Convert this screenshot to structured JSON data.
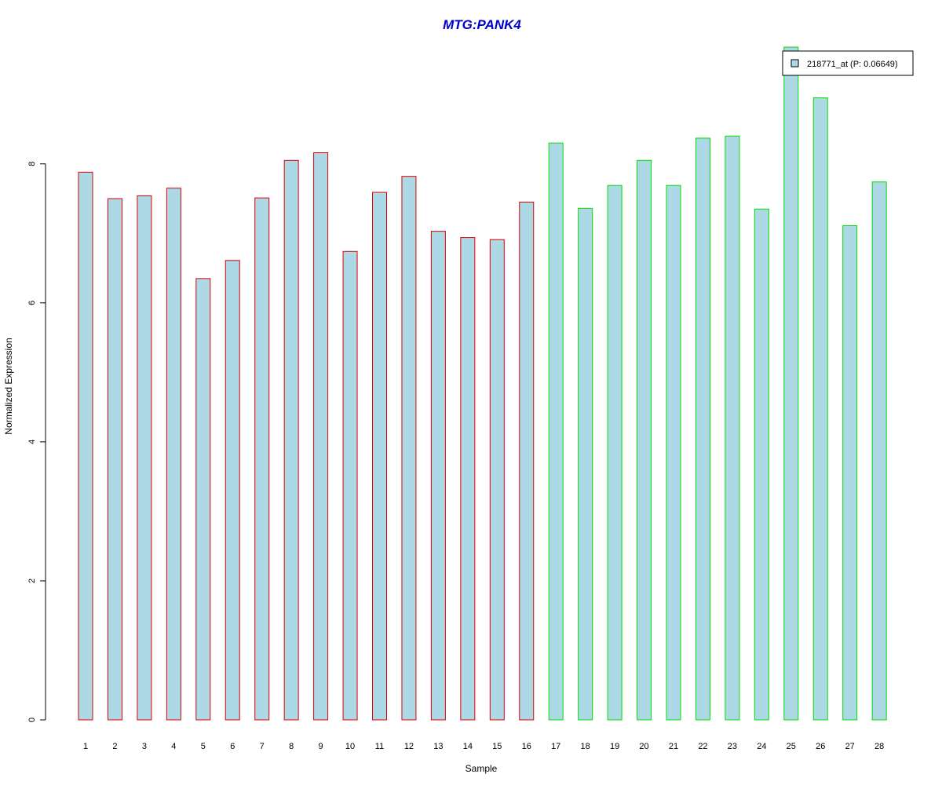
{
  "chart_data": {
    "type": "bar",
    "title": "MTG:PANK4",
    "xlabel": "Sample",
    "ylabel": "Normalized Expression",
    "categories": [
      "1",
      "2",
      "3",
      "4",
      "5",
      "6",
      "7",
      "8",
      "9",
      "10",
      "11",
      "12",
      "13",
      "14",
      "15",
      "16",
      "17",
      "18",
      "19",
      "20",
      "21",
      "22",
      "23",
      "24",
      "25",
      "26",
      "27",
      "28"
    ],
    "series": [
      {
        "name": "218771_at (P: 0.06649)",
        "values": [
          7.88,
          7.5,
          7.54,
          7.65,
          6.35,
          6.61,
          7.51,
          8.05,
          8.16,
          6.74,
          7.59,
          7.82,
          7.03,
          6.94,
          6.91,
          7.45,
          8.3,
          7.36,
          7.69,
          8.05,
          7.69,
          8.37,
          8.4,
          7.35,
          9.68,
          8.95,
          7.11,
          7.74
        ]
      }
    ],
    "group_a_count": 16,
    "ylim": [
      0,
      9.68
    ],
    "yticks": [
      0,
      2,
      4,
      6,
      8
    ],
    "grid": false,
    "legend_position": "top-right",
    "colors": {
      "title": "#0000cc",
      "bar_fill": "#add8e6",
      "group_a_border": "#e00000",
      "group_b_border": "#00e000",
      "axis": "#000000"
    }
  }
}
